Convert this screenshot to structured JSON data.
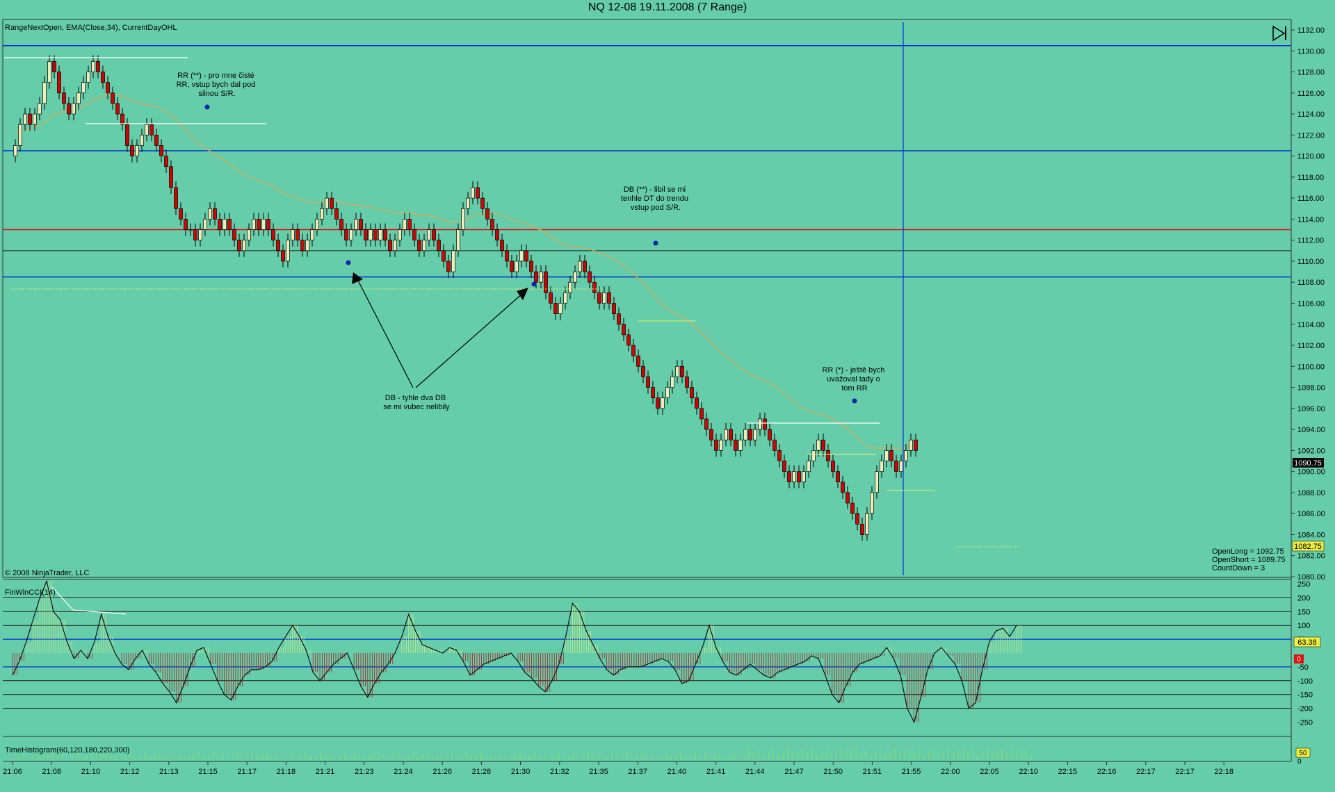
{
  "window": {
    "title": "NQ 12-08  19.11.2008 (7 Range)"
  },
  "main_panel": {
    "indicator_label": "RangeNextOpen, EMA(Close,34), CurrentDayOHL",
    "copyright": "© 2008 NinjaTrader, LLC",
    "price_axis": [
      "1132.00",
      "1130.00",
      "1128.00",
      "1126.00",
      "1124.00",
      "1122.00",
      "1120.00",
      "1118.00",
      "1116.00",
      "1114.00",
      "1112.00",
      "1110.00",
      "1108.00",
      "1106.00",
      "1104.00",
      "1102.00",
      "1100.00",
      "1098.00",
      "1096.00",
      "1094.00",
      "1092.00",
      "1090.00",
      "1088.00",
      "1086.00",
      "1084.00",
      "1082.00",
      "1080.00"
    ],
    "last_price": "1090.75",
    "lower_marker": "1082.75",
    "info_lines": [
      "OpenLong = 1092.75",
      "OpenShort = 1089.75",
      "CountDown = 3"
    ],
    "annotations": [
      {
        "lines": [
          "RR (**) - pro mne čisté",
          "RR, vstup bych dal pod",
          "silnou S/R."
        ]
      },
      {
        "lines": [
          "DB - tyhle dva DB",
          "se mi vubec nelibily"
        ]
      },
      {
        "lines": [
          "DB (**) - libil se mi",
          "tenhle DT do trendu",
          "vstup pod S/R."
        ]
      },
      {
        "lines": [
          "RR (*) - ještě bych",
          "uvažoval tady o",
          "tom RR"
        ]
      }
    ],
    "colors": {
      "background": "#66cdaa",
      "up_candle": "#eeeebb",
      "down_candle": "#cc0000",
      "ema": "#c8b060",
      "blue_lines": "#0033cc",
      "red_line": "#dd1111"
    }
  },
  "cci_panel": {
    "label": "FinWinCCI(14)",
    "axis": [
      "250",
      "200",
      "150",
      "100",
      "50",
      "-50",
      "-100",
      "-150",
      "-200",
      "-250"
    ],
    "value_marker": "63.38",
    "zero_marker": "0"
  },
  "hist_panel": {
    "label": "TimeHistogram(60,120,180,220,300)",
    "value_marker": "50",
    "zero": "0"
  },
  "time_axis": [
    "21:06",
    "21:08",
    "21:10",
    "21:12",
    "21:13",
    "21:15",
    "21:17",
    "21:18",
    "21:21",
    "21:23",
    "21:24",
    "21:26",
    "21:28",
    "21:30",
    "21:32",
    "21:35",
    "21:37",
    "21:40",
    "21:41",
    "21:44",
    "21:47",
    "21:50",
    "21:51",
    "21:55",
    "22:00",
    "22:05",
    "22:10",
    "22:15",
    "22:16",
    "22:17",
    "22:17",
    "22:18"
  ],
  "chart_data": [
    {
      "type": "candlestick",
      "title": "NQ 12-08  19.11.2008 (7 Range)",
      "y_range": [
        1080,
        1132.5
      ],
      "horizontal_levels": {
        "blue": [
          1130.5,
          1120.5,
          1108.5
        ],
        "red": [
          1113.0
        ],
        "black": [
          1111.0
        ]
      },
      "closes": [
        1121,
        1123,
        1124,
        1123,
        1124,
        1125,
        1127,
        1129,
        1128,
        1126,
        1125,
        1124,
        1125,
        1126,
        1127,
        1128,
        1129,
        1128,
        1127,
        1126,
        1125,
        1124,
        1123,
        1121,
        1120,
        1121,
        1122,
        1123,
        1122,
        1121,
        1120,
        1119,
        1117,
        1115,
        1114,
        1113,
        1113,
        1112,
        1113,
        1114,
        1115,
        1114,
        1113,
        1114,
        1113,
        1112,
        1111,
        1112,
        1113,
        1114,
        1113,
        1114,
        1113,
        1112,
        1111,
        1110,
        1112,
        1113,
        1112,
        1111,
        1112,
        1113,
        1114,
        1115,
        1116,
        1115,
        1114,
        1113,
        1112,
        1113,
        1114,
        1113,
        1112,
        1113,
        1112,
        1113,
        1112,
        1111,
        1112,
        1113,
        1114,
        1113,
        1112,
        1111,
        1112,
        1113,
        1112,
        1111,
        1110,
        1109,
        1111,
        1113,
        1115,
        1116,
        1117,
        1116,
        1115,
        1114,
        1113,
        1112,
        1111,
        1110,
        1109,
        1110,
        1111,
        1110,
        1109,
        1108,
        1109,
        1107,
        1106,
        1105,
        1106,
        1107,
        1108,
        1109,
        1110,
        1109,
        1108,
        1107,
        1106,
        1107,
        1106,
        1105,
        1104,
        1103,
        1102,
        1101,
        1100,
        1099,
        1098,
        1097,
        1096,
        1097,
        1098,
        1099,
        1100,
        1099,
        1098,
        1097,
        1096,
        1095,
        1094,
        1093,
        1092,
        1093,
        1094,
        1093,
        1092,
        1093,
        1094,
        1093,
        1094,
        1095,
        1094,
        1093,
        1092,
        1091,
        1090,
        1089,
        1090,
        1089,
        1090,
        1091,
        1092,
        1093,
        1092,
        1091,
        1090,
        1089,
        1088,
        1087,
        1086,
        1085,
        1084,
        1086,
        1088,
        1090,
        1091,
        1092,
        1091,
        1090,
        1091,
        1092,
        1093,
        1092
      ],
      "ema": "EMA(Close,34)",
      "cci_range": [
        -250,
        250
      ],
      "cci_values": [
        -80,
        -30,
        40,
        120,
        200,
        260,
        150,
        120,
        40,
        -20,
        10,
        -20,
        40,
        140,
        60,
        0,
        -40,
        -60,
        -20,
        10,
        -40,
        -70,
        -110,
        -140,
        -180,
        -120,
        -50,
        10,
        20,
        -40,
        -100,
        -150,
        -170,
        -120,
        -80,
        -60,
        -60,
        -50,
        -30,
        20,
        60,
        100,
        60,
        10,
        -70,
        -100,
        -70,
        -40,
        -20,
        0,
        -60,
        -120,
        -160,
        -110,
        -70,
        -40,
        0,
        60,
        140,
        80,
        30,
        20,
        10,
        0,
        20,
        10,
        -30,
        -80,
        -60,
        -40,
        -30,
        -20,
        -10,
        0,
        -30,
        -70,
        -90,
        -120,
        -140,
        -100,
        -40,
        60,
        180,
        150,
        80,
        30,
        -20,
        -60,
        -80,
        -60,
        -50,
        -50,
        -50,
        -40,
        -30,
        -20,
        -30,
        -60,
        -110,
        -100,
        -40,
        20,
        100,
        20,
        -30,
        -70,
        -80,
        -60,
        -40,
        -60,
        -80,
        -90,
        -70,
        -60,
        -50,
        -40,
        -30,
        -10,
        -20,
        -80,
        -150,
        -180,
        -120,
        -70,
        -40,
        -30,
        -20,
        -10,
        20,
        -20,
        -80,
        -200,
        -250,
        -160,
        -60,
        0,
        20,
        -10,
        -40,
        -100,
        -200,
        -180,
        -60,
        40,
        80,
        90,
        60,
        100
      ]
    }
  ]
}
